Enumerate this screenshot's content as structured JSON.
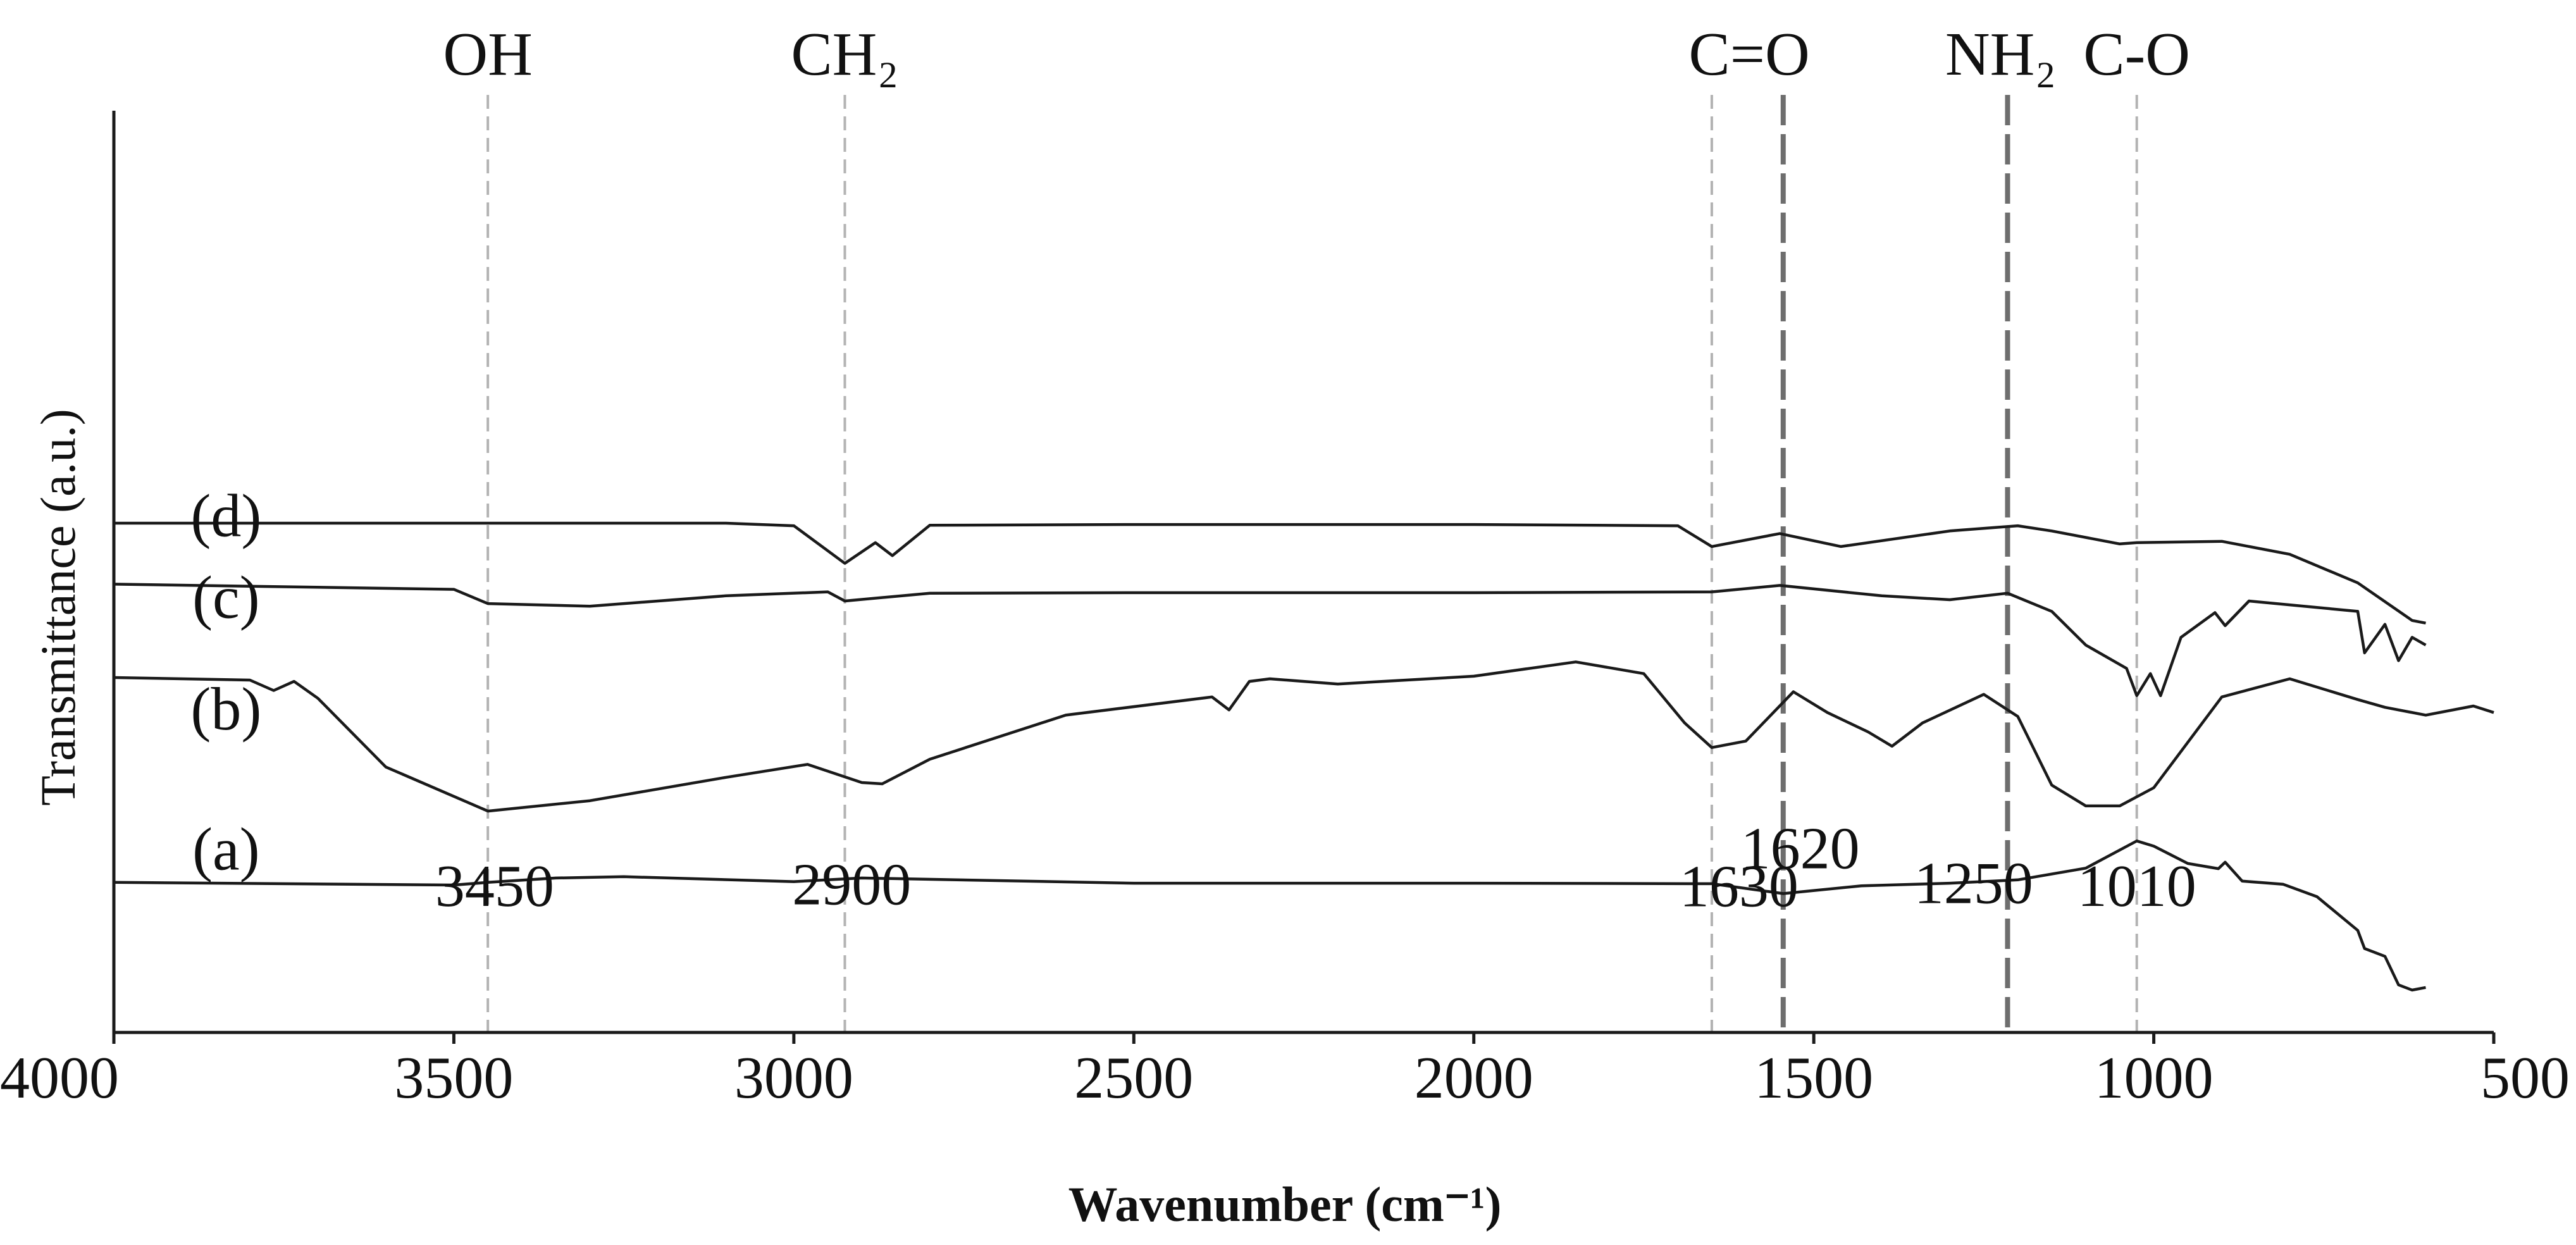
{
  "chart_data": {
    "type": "line",
    "xlabel": "Wavenumber (cm⁻¹)",
    "ylabel": "Transmittance (a.u.)",
    "xlim": [
      4000,
      500
    ],
    "x_reversed": true,
    "x_ticks": [
      4000,
      3500,
      3000,
      2500,
      2000,
      1500,
      1000,
      500
    ],
    "grid": false,
    "y_axis_units": "arbitrary, stacked offsets",
    "reference_lines": [
      {
        "x": 3450,
        "style": "dashed-light",
        "group": "OH",
        "peak": "3450"
      },
      {
        "x": 2925,
        "style": "dashed-light",
        "group": "CH₂",
        "peak": "2900"
      },
      {
        "x": 1650,
        "style": "dashed-light",
        "group": "C=O",
        "peak": "1630"
      },
      {
        "x": 1545,
        "style": "dashed-dark",
        "group": "",
        "peak": "1620"
      },
      {
        "x": 1215,
        "style": "dashed-dark",
        "group": "NH₂",
        "peak": "1250"
      },
      {
        "x": 1025,
        "style": "dashed-light",
        "group": "C-O",
        "peak": "1010"
      }
    ],
    "group_labels": [
      {
        "text": "OH",
        "x": 3450
      },
      {
        "text": "CH₂",
        "x": 2925
      },
      {
        "text": "C=O",
        "x": 1595
      },
      {
        "text": "NH₂",
        "x": 1225
      },
      {
        "text": "C-O",
        "x": 1025
      }
    ],
    "peak_labels": [
      {
        "text": "3450",
        "x": 3440,
        "y": 0.325
      },
      {
        "text": "2900",
        "x": 2915,
        "y": 0.33
      },
      {
        "text": "1630",
        "x": 1610,
        "y": 0.323
      },
      {
        "text": "1620",
        "x": 1520,
        "y": 0.47
      },
      {
        "text": "1250",
        "x": 1265,
        "y": 0.335
      },
      {
        "text": "1010",
        "x": 1025,
        "y": 0.325
      }
    ],
    "series": [
      {
        "name": "(a)",
        "label_x": 3835,
        "label_y": 0.465,
        "x": [
          4000,
          3500,
          3450,
          3350,
          3250,
          3000,
          2900,
          2500,
          2000,
          1650,
          1545,
          1430,
          1300,
          1200,
          1100,
          1025,
          1000,
          950,
          905,
          895,
          870,
          810,
          760,
          700,
          690,
          660,
          640,
          620,
          600
        ],
        "y": [
          0.415,
          0.405,
          0.415,
          0.432,
          0.437,
          0.418,
          0.432,
          0.412,
          0.412,
          0.41,
          0.372,
          0.402,
          0.412,
          0.425,
          0.47,
          0.575,
          0.555,
          0.488,
          0.468,
          0.493,
          0.42,
          0.408,
          0.36,
          0.23,
          0.16,
          0.13,
          0.02,
          0.0,
          0.01
        ]
      },
      {
        "name": "(b)",
        "label_x": 3835,
        "label_y": 1.005,
        "x": [
          4000,
          3800,
          3765,
          3735,
          3700,
          3600,
          3450,
          3300,
          3100,
          2980,
          2900,
          2870,
          2800,
          2600,
          2385,
          2360,
          2330,
          2300,
          2200,
          2000,
          1850,
          1750,
          1690,
          1650,
          1600,
          1530,
          1480,
          1420,
          1385,
          1340,
          1250,
          1200,
          1150,
          1100,
          1050,
          1000,
          900,
          800,
          700,
          660,
          600,
          530,
          500
        ],
        "y": [
          1.205,
          1.195,
          1.155,
          1.19,
          1.125,
          0.86,
          0.69,
          0.73,
          0.82,
          0.87,
          0.8,
          0.795,
          0.89,
          1.06,
          1.13,
          1.08,
          1.19,
          1.2,
          1.18,
          1.21,
          1.265,
          1.22,
          1.03,
          0.935,
          0.96,
          1.15,
          1.07,
          0.995,
          0.94,
          1.03,
          1.14,
          1.055,
          0.79,
          0.71,
          0.71,
          0.78,
          1.13,
          1.2,
          1.12,
          1.09,
          1.06,
          1.095,
          1.07
        ]
      },
      {
        "name": "(c)",
        "label_x": 3835,
        "label_y": 1.435,
        "x": [
          4000,
          3500,
          3450,
          3300,
          3100,
          2950,
          2925,
          2800,
          2500,
          2000,
          1650,
          1550,
          1400,
          1300,
          1215,
          1150,
          1100,
          1040,
          1025,
          1005,
          990,
          960,
          910,
          895,
          860,
          700,
          690,
          660,
          640,
          620,
          600
        ],
        "y": [
          1.565,
          1.545,
          1.49,
          1.48,
          1.52,
          1.535,
          1.5,
          1.53,
          1.532,
          1.532,
          1.535,
          1.56,
          1.52,
          1.505,
          1.53,
          1.46,
          1.33,
          1.24,
          1.135,
          1.22,
          1.135,
          1.36,
          1.455,
          1.405,
          1.5,
          1.46,
          1.3,
          1.41,
          1.27,
          1.36,
          1.33
        ]
      },
      {
        "name": "(d)",
        "label_x": 3835,
        "label_y": 1.75,
        "x": [
          4000,
          3100,
          3000,
          2925,
          2880,
          2855,
          2800,
          2500,
          2000,
          1700,
          1650,
          1550,
          1460,
          1300,
          1200,
          1150,
          1050,
          1025,
          900,
          800,
          700,
          620,
          600
        ],
        "y": [
          1.8,
          1.8,
          1.79,
          1.645,
          1.725,
          1.675,
          1.792,
          1.795,
          1.795,
          1.79,
          1.71,
          1.76,
          1.71,
          1.77,
          1.79,
          1.77,
          1.72,
          1.725,
          1.73,
          1.68,
          1.57,
          1.425,
          1.415
        ]
      }
    ]
  }
}
